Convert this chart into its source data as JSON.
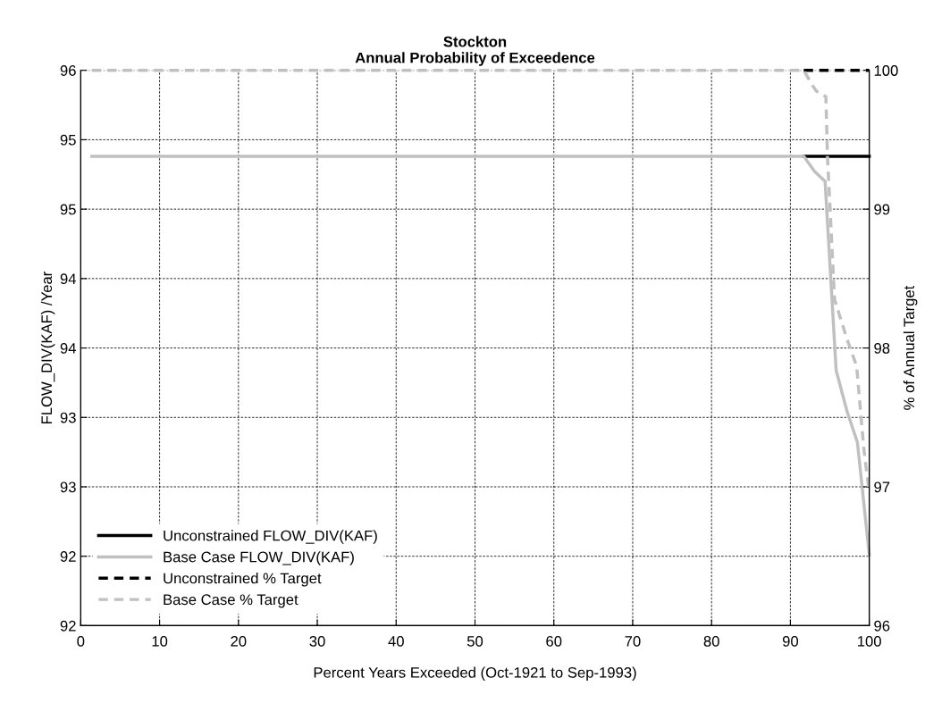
{
  "chart_data": {
    "type": "line",
    "title": "Stockton\nAnnual Probability of Exceedence",
    "xlabel": "Percent Years Exceeded (Oct-1921 to Sep-1993)",
    "ylabel": "FLOW_DIV(KAF) /Year",
    "y2label": "% of Annual Target",
    "xlim": [
      0,
      100
    ],
    "xticks": [
      0,
      10,
      20,
      30,
      40,
      50,
      60,
      70,
      80,
      90,
      100
    ],
    "ylim": [
      92,
      96
    ],
    "yticks": [
      92,
      {
        "value": 92.5,
        "label": "92"
      },
      93,
      {
        "value": 93.5,
        "label": "93"
      },
      94,
      {
        "value": 94.5,
        "label": "94"
      },
      95,
      {
        "value": 95.5,
        "label": "95"
      },
      96
    ],
    "y2lim": [
      96,
      100
    ],
    "y2ticks": [
      96,
      97,
      98,
      99,
      100
    ],
    "grid": true,
    "legend": "bottom left",
    "series": [
      {
        "name": "Unconstrained FLOW_DIV(KAF)",
        "color": "#000000",
        "line_style": "solid",
        "x": [
          91.7,
          100
        ],
        "values": [
          95.38,
          95.38
        ]
      },
      {
        "name": "Base Case FLOW_DIV(KAF)",
        "color": "#c0c0c0",
        "line_style": "solid",
        "x": [
          1.4,
          91.7,
          93.1,
          94.4,
          95.8,
          97.2,
          98.5,
          100
        ],
        "values": [
          95.38,
          95.38,
          95.27,
          95.2,
          93.84,
          93.54,
          93.32,
          92.51
        ]
      },
      {
        "name": "Unconstrained % Target",
        "color": "#000000",
        "line_style": "dashed",
        "axis": "y2",
        "x": [
          91.7,
          100
        ],
        "values": [
          100,
          100
        ]
      },
      {
        "name": "Base Case % Target",
        "color": "#c0c0c0",
        "line_style": "dashed",
        "axis": "y2",
        "x": [
          1.4,
          91.7,
          92.8,
          93.3,
          94.5,
          94.7,
          95.6,
          97.2,
          98.4,
          99.3,
          99.9,
          100
        ],
        "values": [
          100,
          100,
          99.89,
          99.85,
          99.81,
          99.38,
          98.35,
          98.06,
          97.87,
          97.28,
          97.0,
          97.0
        ]
      }
    ]
  }
}
